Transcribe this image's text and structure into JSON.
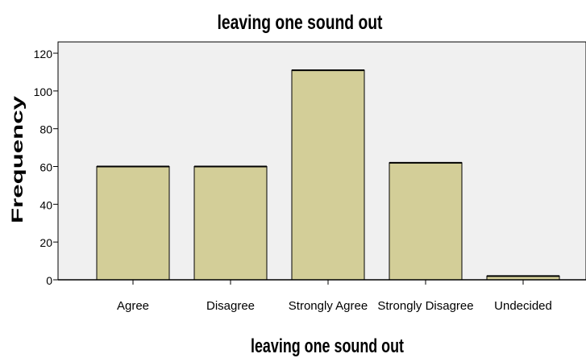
{
  "chart_data": {
    "type": "bar",
    "title": "leaving one sound out",
    "xlabel": "leaving one sound out",
    "ylabel": "Frequency",
    "categories": [
      "Agree",
      "Disagree",
      "Strongly Agree",
      "Strongly Disagree",
      "Undecided"
    ],
    "values": [
      60,
      60,
      111,
      62,
      2
    ],
    "ylim": [
      0,
      120
    ],
    "yticks": [
      "0",
      "20",
      "40",
      "60",
      "80",
      "100",
      "120"
    ],
    "grid": false,
    "legend": "none"
  },
  "colors": {
    "plot_background": "#f0f0f0",
    "bar_fill": "#d3ce98",
    "bar_stroke": "#000000"
  }
}
